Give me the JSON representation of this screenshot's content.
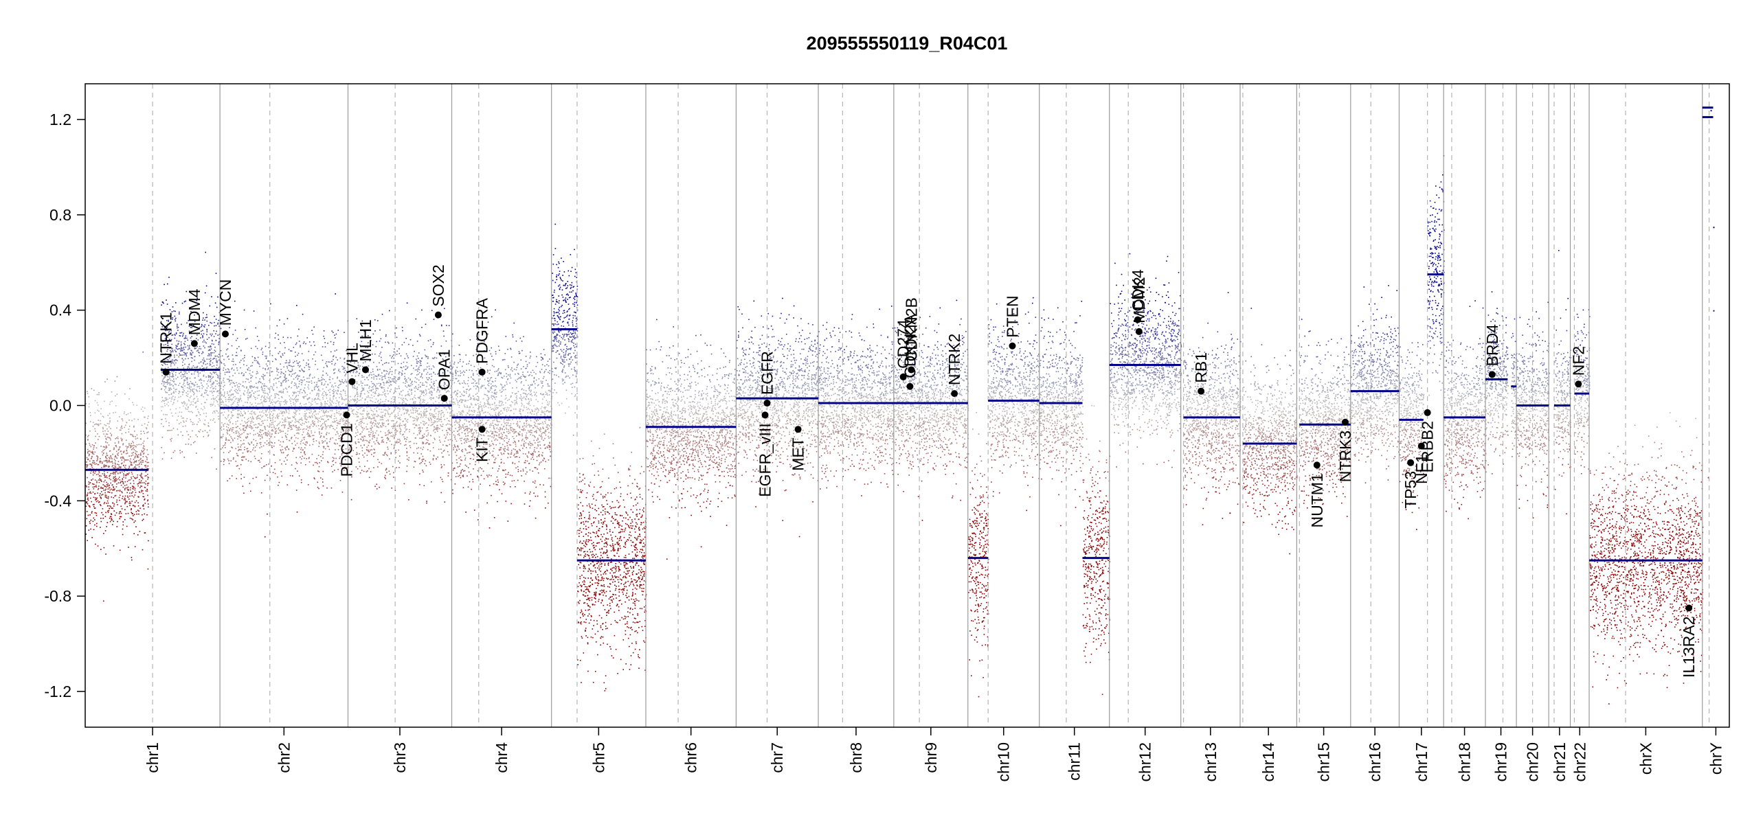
{
  "chart_data": {
    "type": "scatter",
    "title": "209555550119_R04C01",
    "xlabel": "",
    "ylabel": "",
    "ylim": [
      -1.35,
      1.35
    ],
    "y_ticks": [
      "1.2",
      "0.8",
      "0.4",
      "0.0",
      "-0.4",
      "-0.8",
      "-1.2"
    ],
    "grid": "vertical chromosome boundaries (solid) and centromeres (dashed)",
    "colors": {
      "gain": "#00008B",
      "loss": "#8B0000",
      "neutral": "#BEBEBE",
      "segment": "#00008B",
      "gene": "#000000"
    },
    "chromosomes": [
      {
        "name": "chr1",
        "start": 0,
        "end": 1000,
        "centromere": 500,
        "segments": [
          {
            "from": 0,
            "to": 470,
            "value": -0.27
          },
          {
            "from": 560,
            "to": 1000,
            "value": 0.15
          }
        ]
      },
      {
        "name": "chr2",
        "start": 1000,
        "end": 1950,
        "centromere": 1370,
        "segments": [
          {
            "from": 1000,
            "to": 1950,
            "value": -0.01
          }
        ]
      },
      {
        "name": "chr3",
        "start": 1950,
        "end": 2720,
        "centromere": 2300,
        "segments": [
          {
            "from": 1950,
            "to": 2720,
            "value": 0.0
          }
        ]
      },
      {
        "name": "chr4",
        "start": 2720,
        "end": 3460,
        "centromere": 2920,
        "segments": [
          {
            "from": 2720,
            "to": 3460,
            "value": -0.05
          }
        ]
      },
      {
        "name": "chr5",
        "start": 3460,
        "end": 4160,
        "centromere": 3650,
        "segments": [
          {
            "from": 3460,
            "to": 3650,
            "value": 0.32
          },
          {
            "from": 3650,
            "to": 4160,
            "value": -0.65
          }
        ]
      },
      {
        "name": "chr6",
        "start": 4160,
        "end": 4830,
        "centromere": 4400,
        "segments": [
          {
            "from": 4160,
            "to": 4830,
            "value": -0.09
          }
        ]
      },
      {
        "name": "chr7",
        "start": 4830,
        "end": 5440,
        "centromere": 5060,
        "segments": [
          {
            "from": 4830,
            "to": 5440,
            "value": 0.03
          }
        ]
      },
      {
        "name": "chr8",
        "start": 5440,
        "end": 6000,
        "centromere": 5620,
        "segments": [
          {
            "from": 5440,
            "to": 6000,
            "value": 0.01
          }
        ]
      },
      {
        "name": "chr9",
        "start": 6000,
        "end": 6550,
        "centromere": 6190,
        "segments": [
          {
            "from": 6000,
            "to": 6550,
            "value": 0.01
          }
        ]
      },
      {
        "name": "chr10",
        "start": 6550,
        "end": 7080,
        "centromere": 6700,
        "segments": [
          {
            "from": 6550,
            "to": 6700,
            "value": -0.64
          },
          {
            "from": 6700,
            "to": 7080,
            "value": 0.02
          }
        ]
      },
      {
        "name": "chr11",
        "start": 7080,
        "end": 7600,
        "centromere": 7280,
        "segments": [
          {
            "from": 7080,
            "to": 7400,
            "value": 0.01
          },
          {
            "from": 7400,
            "to": 7600,
            "value": -0.64
          }
        ]
      },
      {
        "name": "chr12",
        "start": 7600,
        "end": 8130,
        "centromere": 7740,
        "segments": [
          {
            "from": 7600,
            "to": 8130,
            "value": 0.17
          }
        ]
      },
      {
        "name": "chr13",
        "start": 8130,
        "end": 8570,
        "centromere": 8150,
        "segments": [
          {
            "from": 8150,
            "to": 8570,
            "value": -0.05
          }
        ]
      },
      {
        "name": "chr14",
        "start": 8570,
        "end": 8990,
        "centromere": 8590,
        "segments": [
          {
            "from": 8590,
            "to": 8990,
            "value": -0.16
          }
        ]
      },
      {
        "name": "chr15",
        "start": 8990,
        "end": 9390,
        "centromere": 9010,
        "segments": [
          {
            "from": 9010,
            "to": 9390,
            "value": -0.08
          }
        ]
      },
      {
        "name": "chr16",
        "start": 9390,
        "end": 9750,
        "centromere": 9540,
        "segments": [
          {
            "from": 9390,
            "to": 9750,
            "value": 0.06
          }
        ]
      },
      {
        "name": "chr17",
        "start": 9750,
        "end": 10080,
        "centromere": 9960,
        "segments": [
          {
            "from": 9750,
            "to": 9930,
            "value": -0.06
          },
          {
            "from": 9960,
            "to": 10080,
            "value": 0.55
          }
        ]
      },
      {
        "name": "chr18",
        "start": 10080,
        "end": 10390,
        "centromere": 10140,
        "segments": [
          {
            "from": 10080,
            "to": 10390,
            "value": -0.05
          }
        ]
      },
      {
        "name": "chr19",
        "start": 10390,
        "end": 10620,
        "centromere": 10520,
        "segments": [
          {
            "from": 10390,
            "to": 10555,
            "value": 0.11
          },
          {
            "from": 10580,
            "to": 10620,
            "value": 0.08
          }
        ]
      },
      {
        "name": "chr20",
        "start": 10620,
        "end": 10860,
        "centromere": 10740,
        "segments": [
          {
            "from": 10620,
            "to": 10860,
            "value": 0.0
          }
        ]
      },
      {
        "name": "chr21",
        "start": 10860,
        "end": 11020,
        "centromere": 10900,
        "segments": [
          {
            "from": 10900,
            "to": 11020,
            "value": 0.0
          }
        ]
      },
      {
        "name": "chr22",
        "start": 11020,
        "end": 11160,
        "centromere": 11050,
        "segments": [
          {
            "from": 11050,
            "to": 11160,
            "value": 0.05
          }
        ]
      },
      {
        "name": "chrX",
        "start": 11160,
        "end": 12000,
        "centromere": 11430,
        "segments": [
          {
            "from": 11160,
            "to": 12000,
            "value": -0.65
          }
        ]
      },
      {
        "name": "chrY",
        "start": 12000,
        "end": 12200,
        "centromere": 12050,
        "segments": [
          {
            "from": 12000,
            "to": 12080,
            "value": 1.21
          },
          {
            "from": 12000,
            "to": 12080,
            "value": 1.25
          }
        ]
      }
    ],
    "genes": [
      {
        "name": "NTRK1",
        "pos": 600,
        "value": 0.14
      },
      {
        "name": "MDM4",
        "pos": 810,
        "value": 0.26
      },
      {
        "name": "MYCN",
        "pos": 1040,
        "value": 0.3
      },
      {
        "name": "PDCD1",
        "pos": 1940,
        "value": -0.04
      },
      {
        "name": "VHL",
        "pos": 1980,
        "value": 0.1
      },
      {
        "name": "MLH1",
        "pos": 2080,
        "value": 0.15
      },
      {
        "name": "SOX2",
        "pos": 2620,
        "value": 0.38
      },
      {
        "name": "OPA1",
        "pos": 2665,
        "value": 0.03
      },
      {
        "name": "PDGFRA",
        "pos": 2945,
        "value": 0.14
      },
      {
        "name": "KIT",
        "pos": 2945,
        "value": -0.1
      },
      {
        "name": "EGFR",
        "pos": 5060,
        "value": 0.01
      },
      {
        "name": "EGFR_vIII",
        "pos": 5045,
        "value": -0.04
      },
      {
        "name": "MET",
        "pos": 5290,
        "value": -0.1
      },
      {
        "name": "CD274",
        "pos": 6070,
        "value": 0.12
      },
      {
        "name": "CDKN2A",
        "pos": 6120,
        "value": 0.08
      },
      {
        "name": "CDKN2B",
        "pos": 6130,
        "value": 0.15
      },
      {
        "name": "NTRK2",
        "pos": 6450,
        "value": 0.05
      },
      {
        "name": "PTEN",
        "pos": 6880,
        "value": 0.25
      },
      {
        "name": "CDK4",
        "pos": 7810,
        "value": 0.36
      },
      {
        "name": "MDM2",
        "pos": 7820,
        "value": 0.31
      },
      {
        "name": "RB1",
        "pos": 8280,
        "value": 0.06
      },
      {
        "name": "NUTM1",
        "pos": 9140,
        "value": -0.25
      },
      {
        "name": "NTRK3",
        "pos": 9350,
        "value": -0.07
      },
      {
        "name": "TP53",
        "pos": 9835,
        "value": -0.24
      },
      {
        "name": "NF1",
        "pos": 9915,
        "value": -0.17
      },
      {
        "name": "ERBB2",
        "pos": 9960,
        "value": -0.03
      },
      {
        "name": "BRD4",
        "pos": 10440,
        "value": 0.13
      },
      {
        "name": "NF2",
        "pos": 11080,
        "value": 0.09
      },
      {
        "name": "IL13RA2",
        "pos": 11900,
        "value": -0.85
      }
    ]
  }
}
